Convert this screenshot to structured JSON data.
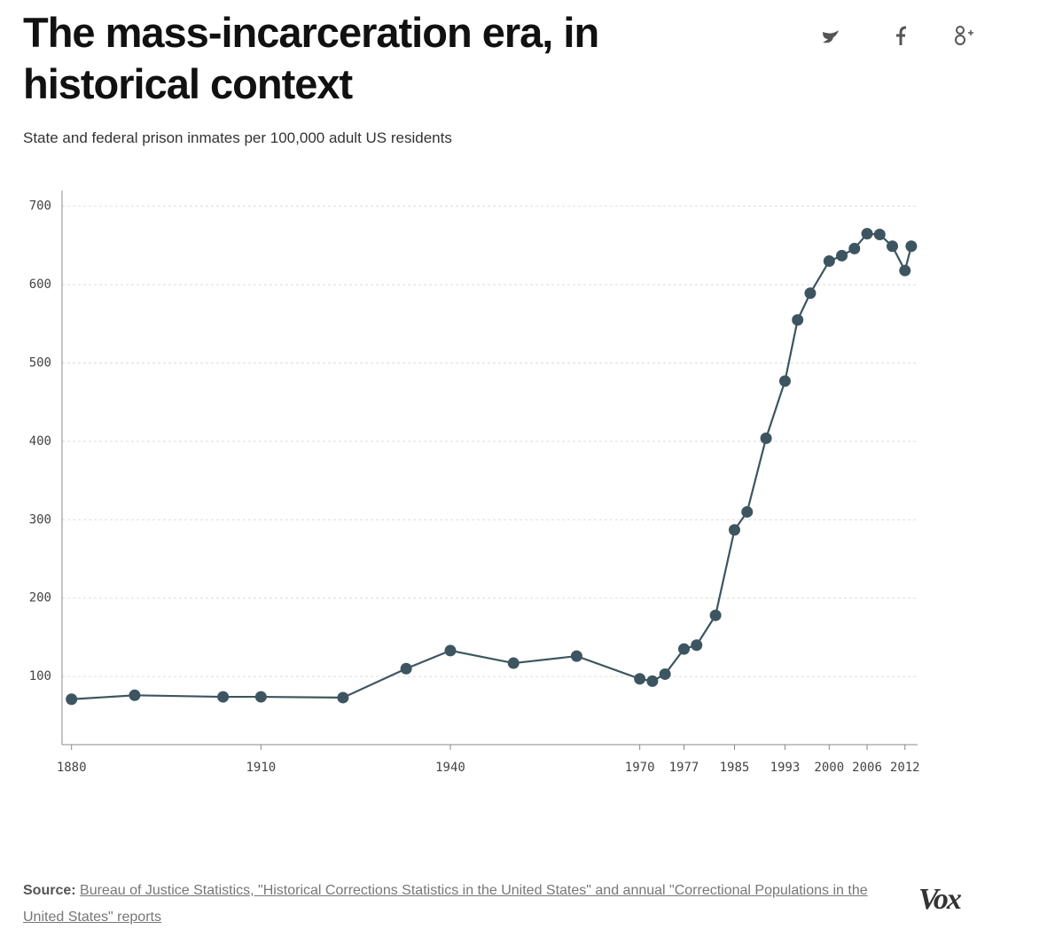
{
  "chart_data": {
    "type": "line",
    "title": "The mass-incarceration era, in historical context",
    "subtitle": "State and federal prison inmates per 100,000 adult US residents",
    "source_label": "Source:",
    "source": "Bureau of Justice Statistics, \"Historical Corrections Statistics in the United States\" and annual \"Correctional Populations in the United States\" reports",
    "logo": "Vox",
    "x": [
      1880,
      1890,
      1904,
      1910,
      1923,
      1933,
      1940,
      1950,
      1960,
      1970,
      1972,
      1974,
      1977,
      1979,
      1982,
      1985,
      1987,
      1990,
      1993,
      1995,
      1997,
      2000,
      2002,
      2004,
      2006,
      2008,
      2010,
      2012,
      2013
    ],
    "series": [
      {
        "name": "Inmates per 100,000",
        "color": "#3d5560",
        "values": [
          71,
          76,
          74,
          74,
          73,
          110,
          133,
          117,
          126,
          97,
          94,
          103,
          135,
          140,
          178,
          287,
          310,
          404,
          477,
          555,
          589,
          630,
          637,
          646,
          665,
          664,
          649,
          618,
          649
        ]
      }
    ],
    "xlim": [
      1878.5,
      2014
    ],
    "xticks": [
      1880,
      1910,
      1940,
      1970,
      1977,
      1985,
      1993,
      2000,
      2006,
      2012
    ],
    "ylim": [
      13,
      720
    ],
    "yticks": [
      100,
      200,
      300,
      400,
      500,
      600,
      700
    ],
    "grid": true
  }
}
